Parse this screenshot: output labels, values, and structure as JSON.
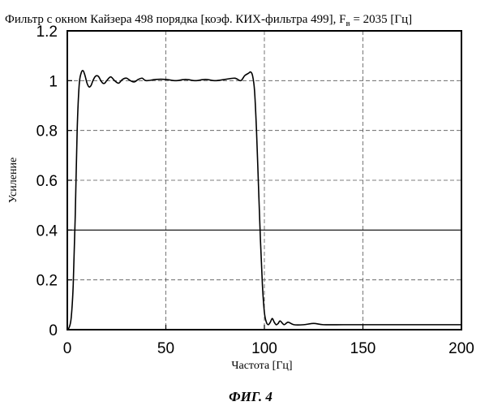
{
  "figure": {
    "title_main": "Фильтр с окном Кайзера 498 порядка [коэф. КИХ-фильтра 499], F",
    "title_subscript": "в",
    "title_tail": " = 2035 [Гц]",
    "caption": "ФИГ. 4"
  },
  "chart_data": {
    "type": "line",
    "xlabel": "Частота [Гц]",
    "ylabel": "Усиление",
    "xlim": [
      0,
      200
    ],
    "ylim": [
      0,
      1.2
    ],
    "xticks": [
      0,
      50,
      100,
      150,
      200
    ],
    "xtick_labels": [
      "0",
      "50",
      "100",
      "150",
      "200"
    ],
    "yticks": [
      0,
      0.2,
      0.4,
      0.6,
      0.8,
      1,
      1.2
    ],
    "ytick_labels": [
      "0",
      "0.2",
      "0.4",
      "0.6",
      "0.8",
      "1",
      "1.2"
    ],
    "grid": true,
    "reference_line_y": 0.4,
    "series": [
      {
        "x": [
          0,
          1,
          2,
          3,
          4,
          5,
          6,
          7,
          8,
          9,
          10,
          11,
          12,
          13,
          14,
          15,
          16,
          17,
          18,
          19,
          20,
          22,
          24,
          26,
          28,
          30,
          32,
          34,
          36,
          38,
          40,
          45,
          50,
          55,
          60,
          65,
          70,
          75,
          80,
          85,
          88,
          90,
          92,
          93,
          94,
          95,
          96,
          97,
          98,
          99,
          100,
          101,
          102,
          103,
          104,
          105,
          106,
          107,
          108,
          110,
          112,
          115,
          120,
          125,
          130,
          140,
          150,
          160,
          170,
          180,
          190,
          200
        ],
        "y": [
          0.0,
          0.01,
          0.05,
          0.18,
          0.45,
          0.8,
          0.98,
          1.03,
          1.04,
          1.02,
          0.99,
          0.975,
          0.98,
          1.0,
          1.015,
          1.02,
          1.015,
          1.0,
          0.99,
          0.99,
          1.0,
          1.015,
          1.0,
          0.99,
          1.005,
          1.01,
          1.0,
          0.995,
          1.005,
          1.01,
          1.0,
          1.005,
          1.005,
          1.0,
          1.005,
          1.0,
          1.005,
          1.0,
          1.005,
          1.01,
          1.0,
          1.02,
          1.03,
          1.035,
          1.02,
          0.96,
          0.8,
          0.58,
          0.36,
          0.18,
          0.07,
          0.03,
          0.02,
          0.03,
          0.045,
          0.03,
          0.02,
          0.025,
          0.035,
          0.02,
          0.03,
          0.02,
          0.02,
          0.025,
          0.02,
          0.02,
          0.02,
          0.02,
          0.02,
          0.02,
          0.02,
          0.02
        ]
      }
    ]
  }
}
